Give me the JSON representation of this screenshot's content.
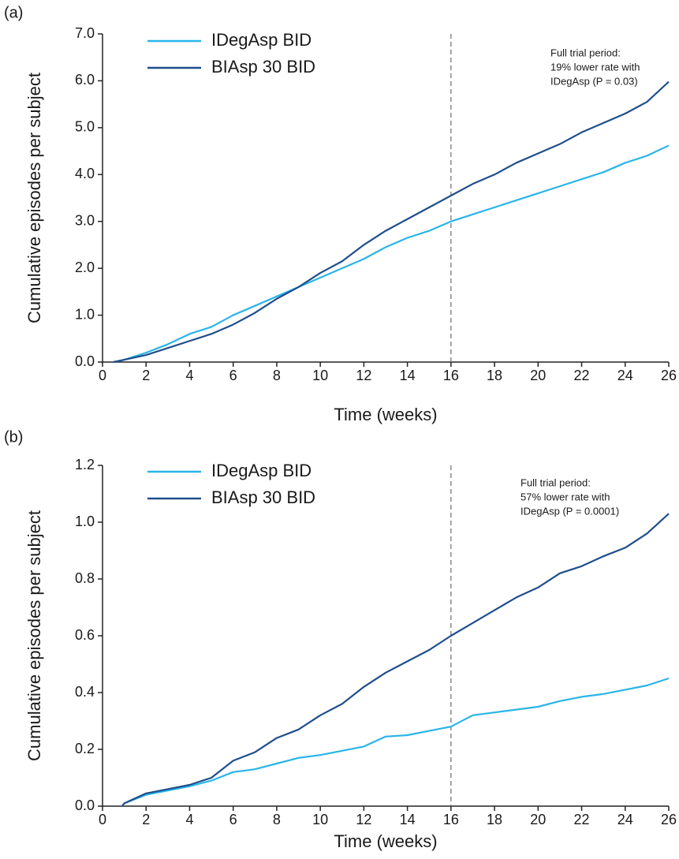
{
  "chart_data": [
    {
      "type": "line",
      "panel_label": "(a)",
      "x_label": "Time (weeks)",
      "y_label": "Cumulative episodes per subject",
      "annotation": [
        "Full trial period:",
        "19% lower rate with",
        "IDegAsp (P = 0.03)"
      ],
      "vline": 16,
      "x": [
        0.5,
        1,
        2,
        3,
        4,
        5,
        6,
        7,
        8,
        9,
        10,
        11,
        12,
        13,
        14,
        15,
        16,
        17,
        18,
        19,
        20,
        21,
        22,
        23,
        24,
        25,
        26
      ],
      "series": [
        {
          "name": "IDegAsp BID",
          "color": "#29b5e8",
          "values": [
            0,
            0.05,
            0.2,
            0.38,
            0.6,
            0.75,
            1.0,
            1.2,
            1.4,
            1.6,
            1.8,
            2.0,
            2.2,
            2.45,
            2.65,
            2.8,
            3.0,
            3.15,
            3.3,
            3.45,
            3.6,
            3.75,
            3.9,
            4.05,
            4.25,
            4.4,
            4.62
          ]
        },
        {
          "name": "BIAsp 30 BID",
          "color": "#1f4e8c",
          "values": [
            0,
            0.05,
            0.15,
            0.3,
            0.45,
            0.6,
            0.8,
            1.05,
            1.35,
            1.6,
            1.9,
            2.15,
            2.5,
            2.8,
            3.05,
            3.3,
            3.55,
            3.8,
            4.0,
            4.25,
            4.45,
            4.65,
            4.9,
            5.1,
            5.3,
            5.55,
            5.98
          ]
        }
      ],
      "xlim": [
        0,
        26
      ],
      "xticks": [
        0,
        2,
        4,
        6,
        8,
        10,
        12,
        14,
        16,
        18,
        20,
        22,
        24,
        26
      ],
      "ylim": [
        0,
        7
      ],
      "yticks": [
        {
          "value": 0,
          "label": "0.0"
        },
        {
          "value": 1,
          "label": "1.0"
        },
        {
          "value": 2,
          "label": "2.0"
        },
        {
          "value": 3,
          "label": "3.0"
        },
        {
          "value": 4,
          "label": "4.0"
        },
        {
          "value": 5,
          "label": "5.0"
        },
        {
          "value": 6,
          "label": "6.0"
        },
        {
          "value": 7,
          "label": "7.0"
        }
      ],
      "grid": false,
      "legend": "top-left"
    },
    {
      "type": "line",
      "panel_label": "(b)",
      "x_label": "Time (weeks)",
      "y_label": "Cumulative episodes per subject",
      "annotation": [
        "Full trial period:",
        "57% lower rate with",
        "IDegAsp (P = 0.0001)"
      ],
      "vline": 16,
      "x": [
        0.9,
        1,
        2,
        3,
        4,
        5,
        6,
        7,
        8,
        9,
        10,
        11,
        12,
        13,
        14,
        15,
        16,
        17,
        18,
        19,
        20,
        21,
        22,
        23,
        24,
        25,
        26
      ],
      "series": [
        {
          "name": "IDegAsp BID",
          "color": "#29b5e8",
          "values": [
            0,
            0.01,
            0.04,
            0.055,
            0.07,
            0.09,
            0.12,
            0.13,
            0.15,
            0.17,
            0.18,
            0.195,
            0.21,
            0.245,
            0.25,
            0.265,
            0.28,
            0.32,
            0.33,
            0.34,
            0.35,
            0.37,
            0.385,
            0.395,
            0.41,
            0.425,
            0.45
          ]
        },
        {
          "name": "BIAsp 30 BID",
          "color": "#1f4e8c",
          "values": [
            0,
            0.01,
            0.045,
            0.06,
            0.075,
            0.1,
            0.16,
            0.19,
            0.24,
            0.27,
            0.32,
            0.36,
            0.42,
            0.47,
            0.51,
            0.55,
            0.6,
            0.645,
            0.69,
            0.735,
            0.77,
            0.82,
            0.845,
            0.88,
            0.91,
            0.96,
            1.03
          ]
        }
      ],
      "xlim": [
        0,
        26
      ],
      "xticks": [
        0,
        2,
        4,
        6,
        8,
        10,
        12,
        14,
        16,
        18,
        20,
        22,
        24,
        26
      ],
      "ylim": [
        0,
        1.2
      ],
      "yticks": [
        {
          "value": 0,
          "label": "0.0"
        },
        0.2,
        0.4,
        0.6,
        0.8,
        {
          "value": 1,
          "label": "1.0"
        },
        1.2
      ],
      "grid": false,
      "legend": "top-left"
    }
  ]
}
